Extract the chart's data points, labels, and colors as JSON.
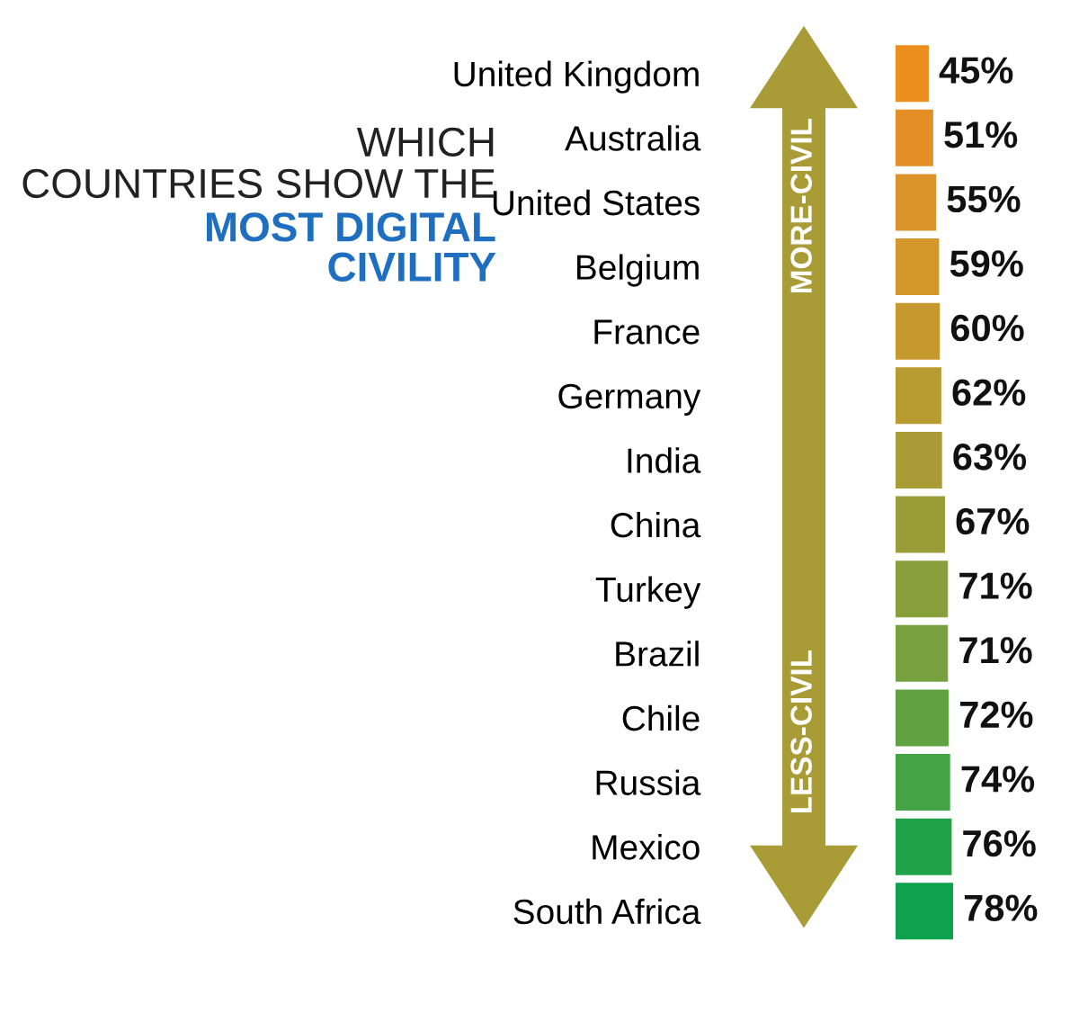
{
  "chart_data": {
    "type": "bar",
    "orientation": "horizontal",
    "title": "WHICH COUNTRIES SHOW THE",
    "subtitle": "MOST DIGITAL CIVILITY",
    "categories": [
      "United Kingdom",
      "Australia",
      "United States",
      "Belgium",
      "France",
      "Germany",
      "India",
      "China",
      "Turkey",
      "Brazil",
      "Chile",
      "Russia",
      "Mexico",
      "South Africa"
    ],
    "values": [
      45,
      51,
      55,
      59,
      60,
      62,
      63,
      67,
      71,
      71,
      72,
      74,
      76,
      78
    ],
    "value_labels": [
      "45%",
      "51%",
      "55%",
      "59%",
      "60%",
      "62%",
      "63%",
      "67%",
      "71%",
      "71%",
      "72%",
      "74%",
      "76%",
      "78%"
    ],
    "colors": [
      "#ec8f1f",
      "#e38f26",
      "#db9429",
      "#d3972b",
      "#c6992e",
      "#b89b31",
      "#a99b35",
      "#9a9c38",
      "#889f3c",
      "#77a03f",
      "#60a142",
      "#44a445",
      "#20a348",
      "#0ea24c"
    ],
    "annotations": [
      "MORE-CIVIL",
      "LESS-CIVIL"
    ],
    "grid": false,
    "legend": false
  }
}
